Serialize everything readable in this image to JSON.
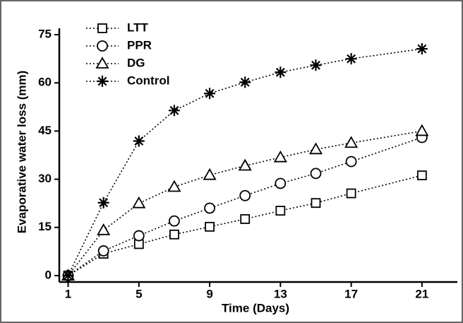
{
  "chart_data": {
    "type": "line",
    "x_label": "Time (Days)",
    "y_label": "Evaporative water loss (mm)",
    "x": [
      1,
      3,
      5,
      7,
      9,
      11,
      13,
      15,
      17,
      21
    ],
    "series": [
      {
        "name": "LTT",
        "color": "#000000",
        "marker": "square",
        "values": [
          0,
          6.8,
          9.8,
          12.8,
          15.2,
          17.6,
          20.2,
          22.6,
          25.6,
          31.2
        ]
      },
      {
        "name": "PPR",
        "color": "#000000",
        "marker": "circle",
        "values": [
          0,
          7.7,
          12.4,
          17,
          21,
          24.9,
          28.7,
          31.8,
          35.5,
          43
        ]
      },
      {
        "name": "DG",
        "color": "#000000",
        "marker": "triangle",
        "values": [
          0,
          14.1,
          22.5,
          27.6,
          31.3,
          34.2,
          36.8,
          39.3,
          41.3,
          45
        ]
      },
      {
        "name": "Control",
        "color": "#000000",
        "marker": "asterisk",
        "values": [
          0,
          22.7,
          41.9,
          51.4,
          56.7,
          60.2,
          63.3,
          65.5,
          67.5,
          70.6
        ]
      }
    ],
    "xlim": [
      0.5,
      23
    ],
    "xticks": [
      1,
      5,
      9,
      13,
      17,
      21
    ],
    "ylim": [
      -2,
      77
    ],
    "yticks": [
      0,
      15,
      30,
      45,
      60,
      75
    ],
    "legend": "upper-left"
  }
}
